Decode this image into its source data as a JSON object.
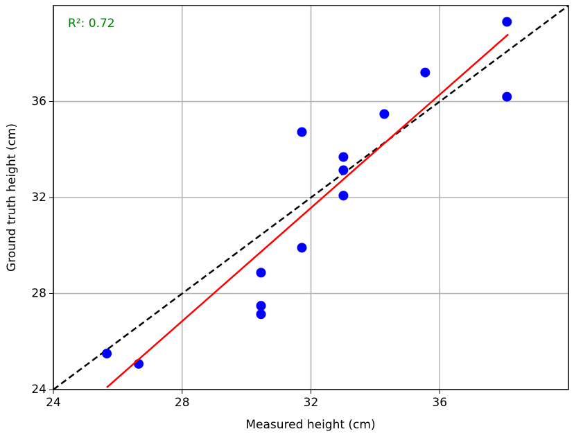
{
  "chart_data": {
    "type": "scatter",
    "xlabel": "Measured height (cm)",
    "ylabel": "Ground truth height (cm)",
    "annotation": "R²: 0.72",
    "annotation_color": "#008000",
    "series": [
      {
        "color": "#0000ff",
        "x": [
          25.66,
          26.65,
          30.45,
          30.45,
          30.45,
          31.72,
          31.72,
          33.01,
          33.01,
          33.01,
          34.28,
          35.55,
          38.09,
          38.09
        ],
        "values": [
          25.5,
          25.07,
          28.87,
          27.49,
          27.14,
          34.73,
          29.91,
          33.69,
          33.14,
          32.08,
          35.48,
          37.21,
          39.32,
          36.2
        ]
      }
    ],
    "fit_line": {
      "color": "#ff0000",
      "x": [
        25.66,
        38.13
      ],
      "values": [
        24.09,
        38.8
      ]
    },
    "reference_line": {
      "color": "#000000",
      "dashed": true,
      "x": [
        24,
        40
      ],
      "values": [
        24,
        40
      ]
    },
    "xlim": [
      24,
      40
    ],
    "ylim": [
      24,
      40
    ],
    "xticks": [
      24,
      28,
      32,
      36
    ],
    "yticks": [
      24,
      28,
      32,
      36
    ],
    "grid": true
  }
}
